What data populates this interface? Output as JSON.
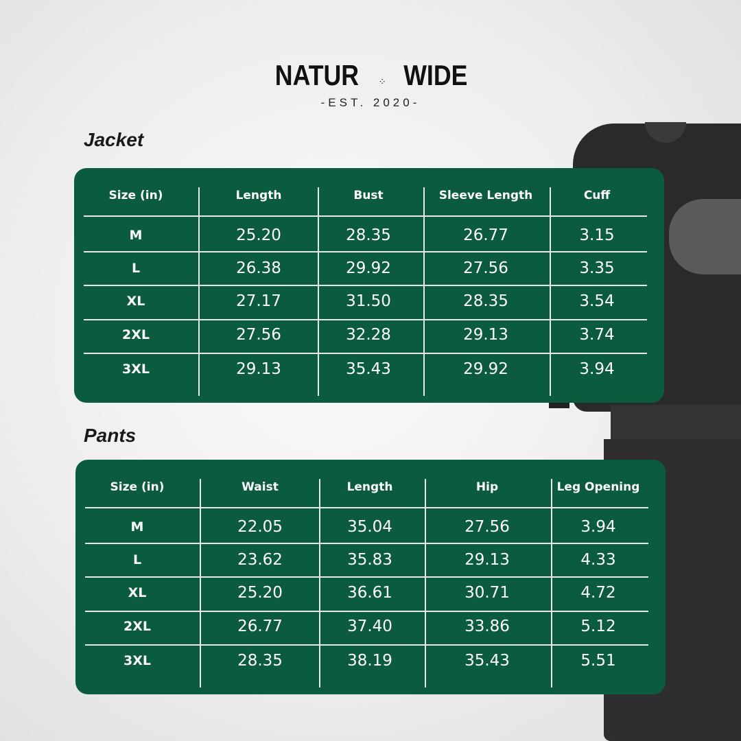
{
  "brand": {
    "name_left": "NATUR",
    "name_right": "WIDE",
    "tagline": "-EST. 2020-",
    "icon": "footprints-icon"
  },
  "colors": {
    "table_bg": "#0b5c3e",
    "text": "#ffffff",
    "garment": "#2a2a2c"
  },
  "jacket": {
    "title": "Jacket",
    "headers": [
      "Size (in)",
      "Length",
      "Bust",
      "Sleeve Length",
      "Cuff"
    ],
    "rows": [
      [
        "M",
        "25.20",
        "28.35",
        "26.77",
        "3.15"
      ],
      [
        "L",
        "26.38",
        "29.92",
        "27.56",
        "3.35"
      ],
      [
        "XL",
        "27.17",
        "31.50",
        "28.35",
        "3.54"
      ],
      [
        "2XL",
        "27.56",
        "32.28",
        "29.13",
        "3.74"
      ],
      [
        "3XL",
        "29.13",
        "35.43",
        "29.92",
        "3.94"
      ]
    ]
  },
  "pants": {
    "title": "Pants",
    "headers": [
      "Size (in)",
      "Waist",
      "Length",
      "Hip",
      "Leg Opening"
    ],
    "rows": [
      [
        "M",
        "22.05",
        "35.04",
        "27.56",
        "3.94"
      ],
      [
        "L",
        "23.62",
        "35.83",
        "29.13",
        "4.33"
      ],
      [
        "XL",
        "25.20",
        "36.61",
        "30.71",
        "4.72"
      ],
      [
        "2XL",
        "26.77",
        "37.40",
        "33.86",
        "5.12"
      ],
      [
        "3XL",
        "28.35",
        "38.19",
        "35.43",
        "5.51"
      ]
    ]
  }
}
